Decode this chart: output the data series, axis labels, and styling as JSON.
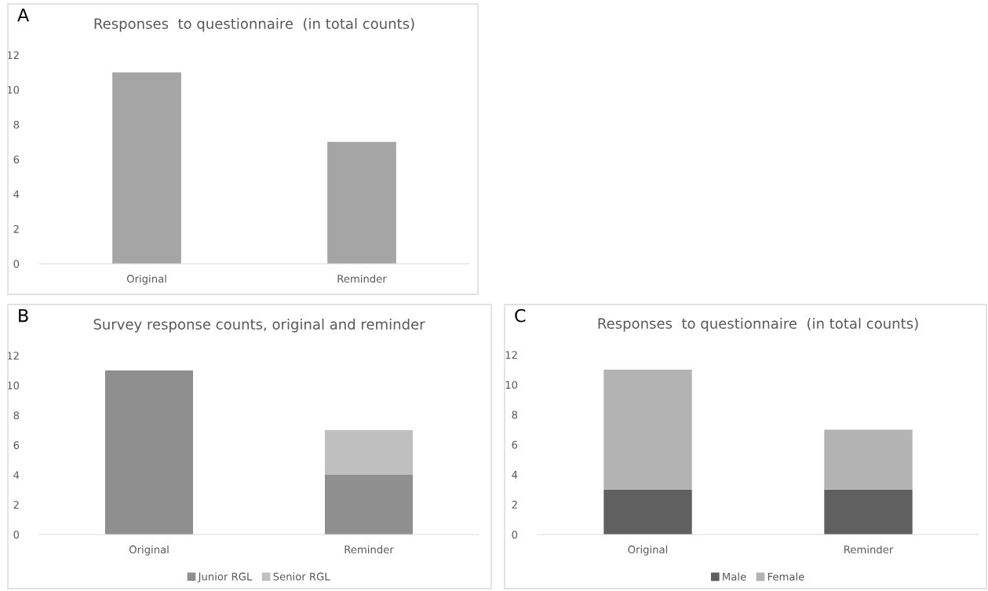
{
  "chart_data": [
    {
      "type": "bar",
      "title": "Responses  to questionnaire  (in total counts)",
      "categories": [
        "Original",
        "Reminder"
      ],
      "values": [
        11,
        7
      ],
      "color": "#a5a5a5",
      "ylim": [
        0,
        12
      ],
      "yticks": [
        0,
        2,
        4,
        6,
        8,
        10,
        12
      ],
      "grid": false,
      "legend": false,
      "annotations": [
        "A"
      ]
    },
    {
      "type": "bar",
      "title": "Survey response counts, original and reminder",
      "categories": [
        "Original",
        "Reminder"
      ],
      "stacked": true,
      "series": [
        {
          "name": "Junior RGL",
          "color": "#8f8f8f",
          "values": [
            11,
            4
          ]
        },
        {
          "name": "Senior RGL",
          "color": "#bfbfbf",
          "values": [
            0,
            3
          ]
        }
      ],
      "ylim": [
        0,
        12
      ],
      "yticks": [
        0,
        2,
        4,
        6,
        8,
        10,
        12
      ],
      "grid": false,
      "legend": "bottom",
      "annotations": [
        "B"
      ]
    },
    {
      "type": "bar",
      "title": "Responses  to questionnaire  (in total counts)",
      "categories": [
        "Original",
        "Reminder"
      ],
      "stacked": true,
      "series": [
        {
          "name": "Male",
          "color": "#606060",
          "values": [
            3,
            3
          ]
        },
        {
          "name": "Female",
          "color": "#b3b3b3",
          "values": [
            8,
            4
          ]
        }
      ],
      "ylim": [
        0,
        12
      ],
      "yticks": [
        0,
        2,
        4,
        6,
        8,
        10,
        12
      ],
      "grid": false,
      "legend": "bottom",
      "annotations": [
        "C"
      ]
    }
  ]
}
